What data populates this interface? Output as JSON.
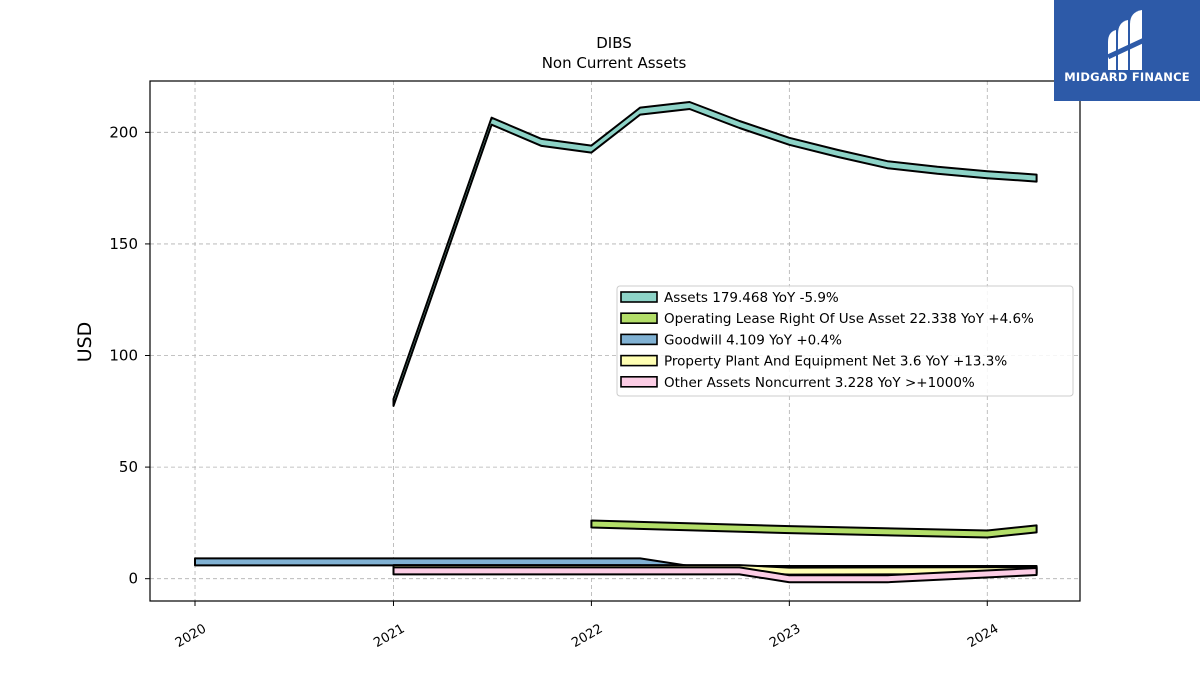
{
  "brand": {
    "name": "MIDGARD FINANCE",
    "color": "#2d5aa8"
  },
  "chart_data": {
    "type": "area",
    "title": "DIBS",
    "subtitle": "Non Current  Assets",
    "xlabel": "",
    "ylabel": "USD",
    "xlim": [
      "2019-10-10",
      "2024-06-20"
    ],
    "ylim": [
      -10,
      223
    ],
    "x_ticks": [
      {
        "date": "2020-01-01",
        "label": "2020"
      },
      {
        "date": "2021-01-01",
        "label": "2021"
      },
      {
        "date": "2022-01-01",
        "label": "2022"
      },
      {
        "date": "2023-01-01",
        "label": "2023"
      },
      {
        "date": "2024-01-01",
        "label": "2024"
      }
    ],
    "y_ticks": [
      0,
      50,
      100,
      150,
      200
    ],
    "grid": true,
    "legend_position": "center-right",
    "series": [
      {
        "name": "Assets",
        "legend": "Assets  179.468 YoY -5.9%",
        "color": "#8dd3c7",
        "points": [
          {
            "x": "2021-01-01",
            "y": 79
          },
          {
            "x": "2021-07-01",
            "y": 205
          },
          {
            "x": "2021-10-01",
            "y": 195.5
          },
          {
            "x": "2022-01-01",
            "y": 192.5
          },
          {
            "x": "2022-04-01",
            "y": 209.5
          },
          {
            "x": "2022-07-01",
            "y": 212
          },
          {
            "x": "2022-10-01",
            "y": 203.5
          },
          {
            "x": "2023-01-01",
            "y": 196
          },
          {
            "x": "2023-04-01",
            "y": 190.5
          },
          {
            "x": "2023-07-01",
            "y": 185.5
          },
          {
            "x": "2023-10-01",
            "y": 183
          },
          {
            "x": "2024-01-01",
            "y": 181
          },
          {
            "x": "2024-04-01",
            "y": 179.5
          }
        ]
      },
      {
        "name": "Operating Lease Right Of Use Asset",
        "legend": "Operating Lease Right Of Use Asset  22.338 YoY +4.6%",
        "color": "#b3de69",
        "points": [
          {
            "x": "2022-01-01",
            "y": 24.5
          },
          {
            "x": "2023-01-01",
            "y": 22
          },
          {
            "x": "2024-01-01",
            "y": 20
          },
          {
            "x": "2024-04-01",
            "y": 22.3
          }
        ]
      },
      {
        "name": "Goodwill",
        "legend": "Goodwill  4.109 YoY +0.4%",
        "color": "#80b1d3",
        "points": [
          {
            "x": "2020-01-01",
            "y": 7.5
          },
          {
            "x": "2022-04-01",
            "y": 7.5
          },
          {
            "x": "2022-07-01",
            "y": 4.1
          },
          {
            "x": "2024-04-01",
            "y": 4.1
          }
        ]
      },
      {
        "name": "Property Plant And Equipment Net",
        "legend": "Property Plant And Equipment Net  3.6 YoY +13.3%",
        "color": "#ffffb3",
        "points": [
          {
            "x": "2021-01-01",
            "y": 4.5
          },
          {
            "x": "2022-10-01",
            "y": 4.5
          },
          {
            "x": "2023-01-01",
            "y": 3.4
          },
          {
            "x": "2024-04-01",
            "y": 3.6
          }
        ]
      },
      {
        "name": "Other Assets Noncurrent",
        "legend": "Other Assets Noncurrent  3.228 YoY >+1000%",
        "color": "#fccde5",
        "points": [
          {
            "x": "2021-01-01",
            "y": 3.5
          },
          {
            "x": "2022-10-01",
            "y": 3.5
          },
          {
            "x": "2023-01-01",
            "y": 0
          },
          {
            "x": "2023-07-01",
            "y": 0
          },
          {
            "x": "2024-04-01",
            "y": 3.2
          }
        ]
      }
    ]
  }
}
